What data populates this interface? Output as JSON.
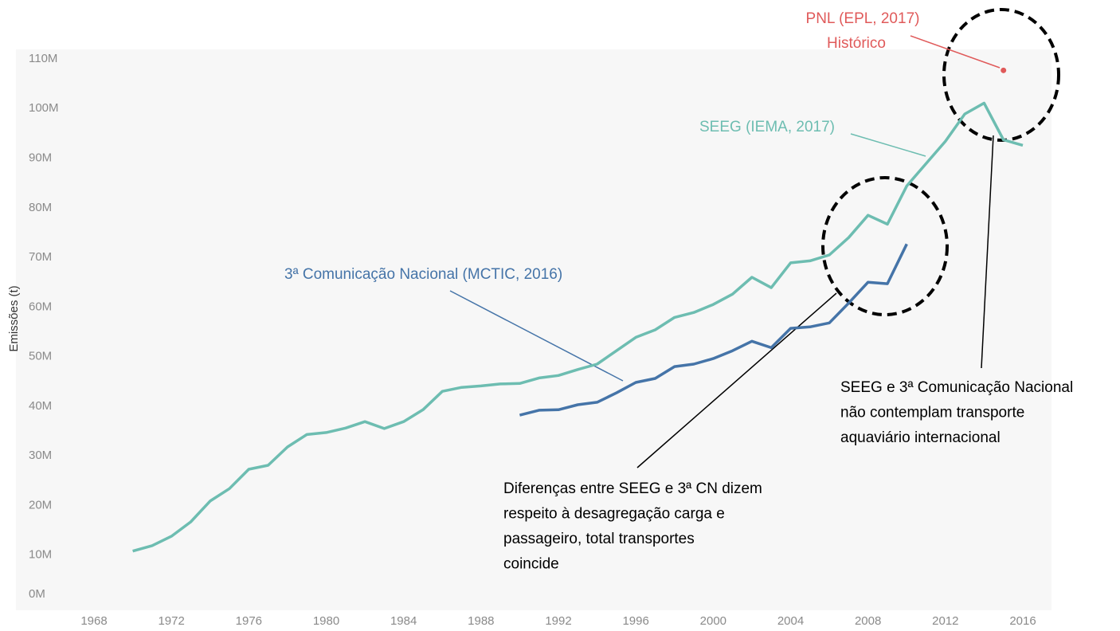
{
  "chart_data": {
    "type": "line",
    "y_label": "Emissões (t)",
    "xlim": [
      1968,
      2018
    ],
    "xticks": [
      1968,
      1972,
      1976,
      1980,
      1984,
      1988,
      1992,
      1996,
      2000,
      2004,
      2008,
      2012,
      2016
    ],
    "ylim": [
      0,
      112000000
    ],
    "yticks": [
      {
        "value": 0,
        "label": "0M"
      },
      {
        "value": 10000000,
        "label": "10M"
      },
      {
        "value": 20000000,
        "label": "20M"
      },
      {
        "value": 30000000,
        "label": "30M"
      },
      {
        "value": 40000000,
        "label": "40M"
      },
      {
        "value": 50000000,
        "label": "50M"
      },
      {
        "value": 60000000,
        "label": "60M"
      },
      {
        "value": 70000000,
        "label": "70M"
      },
      {
        "value": 80000000,
        "label": "80M"
      },
      {
        "value": 90000000,
        "label": "90M"
      },
      {
        "value": 100000000,
        "label": "100M"
      },
      {
        "value": 110000000,
        "label": "110M"
      }
    ],
    "series": [
      {
        "name": "SEEG (IEMA, 2017)",
        "color": "#6dbdb1",
        "x": [
          1970,
          1971,
          1972,
          1973,
          1974,
          1975,
          1976,
          1977,
          1978,
          1979,
          1980,
          1981,
          1982,
          1983,
          1984,
          1985,
          1986,
          1987,
          1988,
          1989,
          1990,
          1991,
          1992,
          1993,
          1994,
          1995,
          1996,
          1997,
          1998,
          1999,
          2000,
          2001,
          2002,
          2003,
          2004,
          2005,
          2006,
          2007,
          2008,
          2009,
          2010,
          2011,
          2012,
          2013,
          2014,
          2015,
          2016
        ],
        "values": [
          10800000,
          11900000,
          13800000,
          16700000,
          20900000,
          23400000,
          27300000,
          28100000,
          31800000,
          34300000,
          34700000,
          35600000,
          36900000,
          35500000,
          36900000,
          39300000,
          43000000,
          43800000,
          44100000,
          44500000,
          44600000,
          45700000,
          46200000,
          47400000,
          48500000,
          51200000,
          53900000,
          55400000,
          57900000,
          58900000,
          60500000,
          62600000,
          66000000,
          63900000,
          68900000,
          69300000,
          70500000,
          74000000,
          78500000,
          76700000,
          84400000,
          88900000,
          93400000,
          98900000,
          101100000,
          93700000,
          92600000
        ]
      },
      {
        "name": "3ª Comunicação Nacional (MCTIC, 2016)",
        "color": "#4574a8",
        "x": [
          1990,
          1991,
          1992,
          1993,
          1994,
          1995,
          1996,
          1997,
          1998,
          1999,
          2000,
          2001,
          2002,
          2003,
          2004,
          2005,
          2006,
          2007,
          2008,
          2009,
          2010
        ],
        "values": [
          38200000,
          39200000,
          39300000,
          40300000,
          40800000,
          42700000,
          44800000,
          45600000,
          48000000,
          48500000,
          49600000,
          51200000,
          53100000,
          51800000,
          55700000,
          56000000,
          56800000,
          60800000,
          65000000,
          64700000,
          72700000
        ]
      },
      {
        "name": "PNL (EPL, 2017)",
        "color": "#e05a5a",
        "x": [
          2015
        ],
        "values": [
          107700000
        ]
      }
    ],
    "annotations": [
      {
        "lines": [
          "Histórico"
        ]
      },
      {
        "lines": [
          "Diferenças entre SEEG e 3ª CN dizem",
          "respeito à desagregação carga e",
          "passageiro, total transportes",
          "coincide"
        ]
      },
      {
        "lines": [
          "SEEG e 3ª Comunicação Nacional",
          "não contemplam transporte",
          "aquaviário internacional"
        ]
      }
    ]
  }
}
